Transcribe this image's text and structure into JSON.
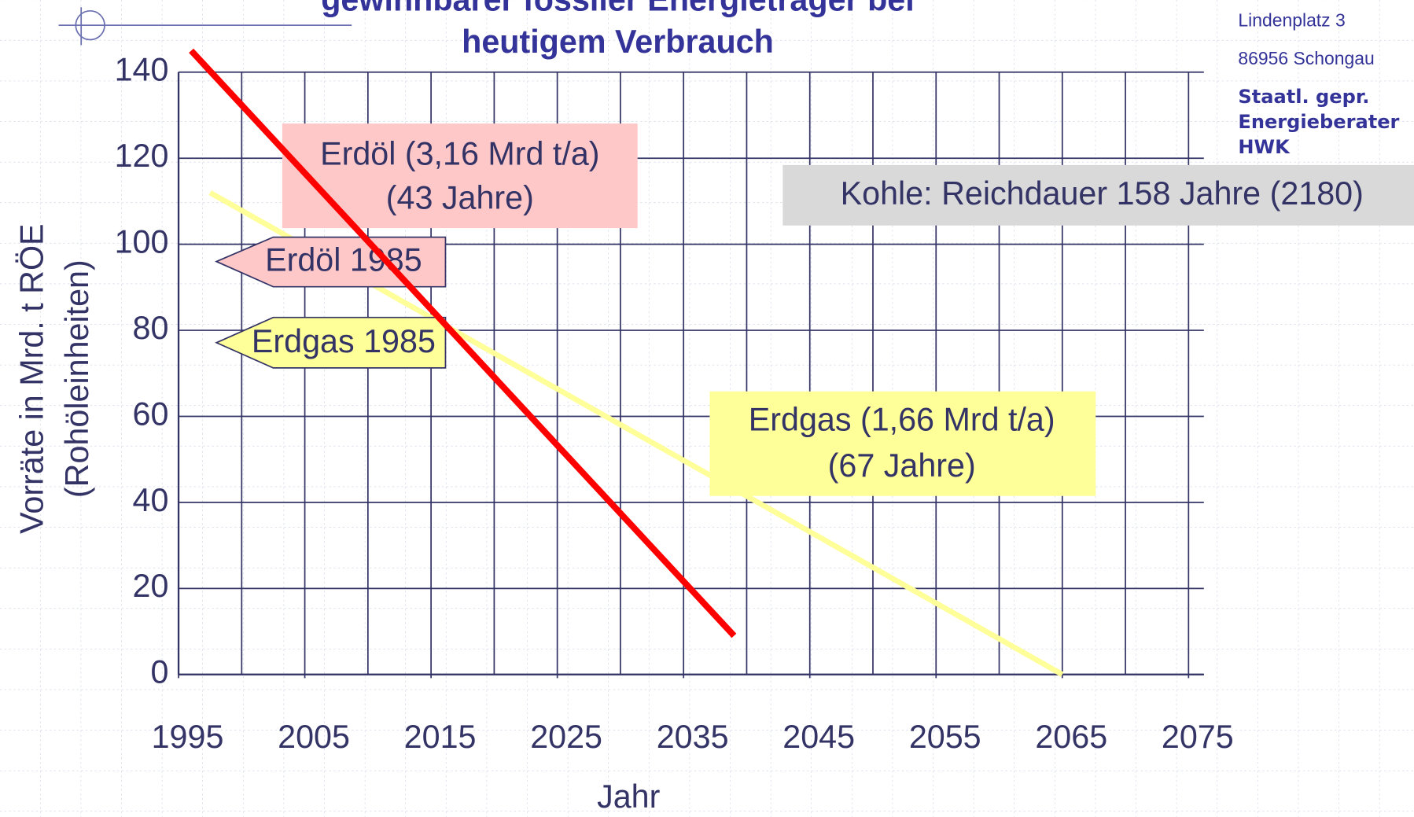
{
  "page": {
    "title_lines": [
      "gewinnbarer fossiler Energieträger bei",
      "heutigem Verbrauch"
    ],
    "sidebar": [
      "Lindenplatz 3",
      "86956 Schongau"
    ],
    "sidebar_bold": [
      "Staatl. gepr.",
      "Energieberater",
      "HWK"
    ]
  },
  "chart_data": {
    "type": "line",
    "y_label_lines": [
      "Vorräte in Mrd. t RÖE",
      "(Rohöleinheiten)"
    ],
    "x_label": "Jahr",
    "xlim": [
      1995,
      2075
    ],
    "xticks": [
      1995,
      2005,
      2015,
      2025,
      2035,
      2045,
      2055,
      2065,
      2075
    ],
    "xminorticks": [
      2000,
      2010,
      2020,
      2030,
      2040,
      2050,
      2060,
      2070
    ],
    "ylim": [
      0,
      140
    ],
    "yticks": [
      0,
      20,
      40,
      60,
      80,
      100,
      120,
      140
    ],
    "grid": true,
    "series": [
      {
        "color": "#ffff99",
        "x": [
          1997.5,
          2065
        ],
        "values": [
          112,
          0
        ]
      },
      {
        "color": "#ff0000",
        "x": [
          1996,
          2039
        ],
        "values": [
          145,
          9
        ]
      }
    ],
    "annotations": [
      {
        "lines": [
          "Erdöl (3,16 Mrd t/a)",
          "(43 Jahre)"
        ]
      },
      {
        "lines": [
          "Erdöl 1985"
        ]
      },
      {
        "lines": [
          "Erdgas 1985"
        ]
      },
      {
        "lines": [
          "Erdgas (1,66 Mrd t/a)",
          "(67 Jahre)"
        ]
      },
      {
        "lines": [
          "Kohle: Reichdauer 158 Jahre (2180)"
        ]
      }
    ]
  }
}
